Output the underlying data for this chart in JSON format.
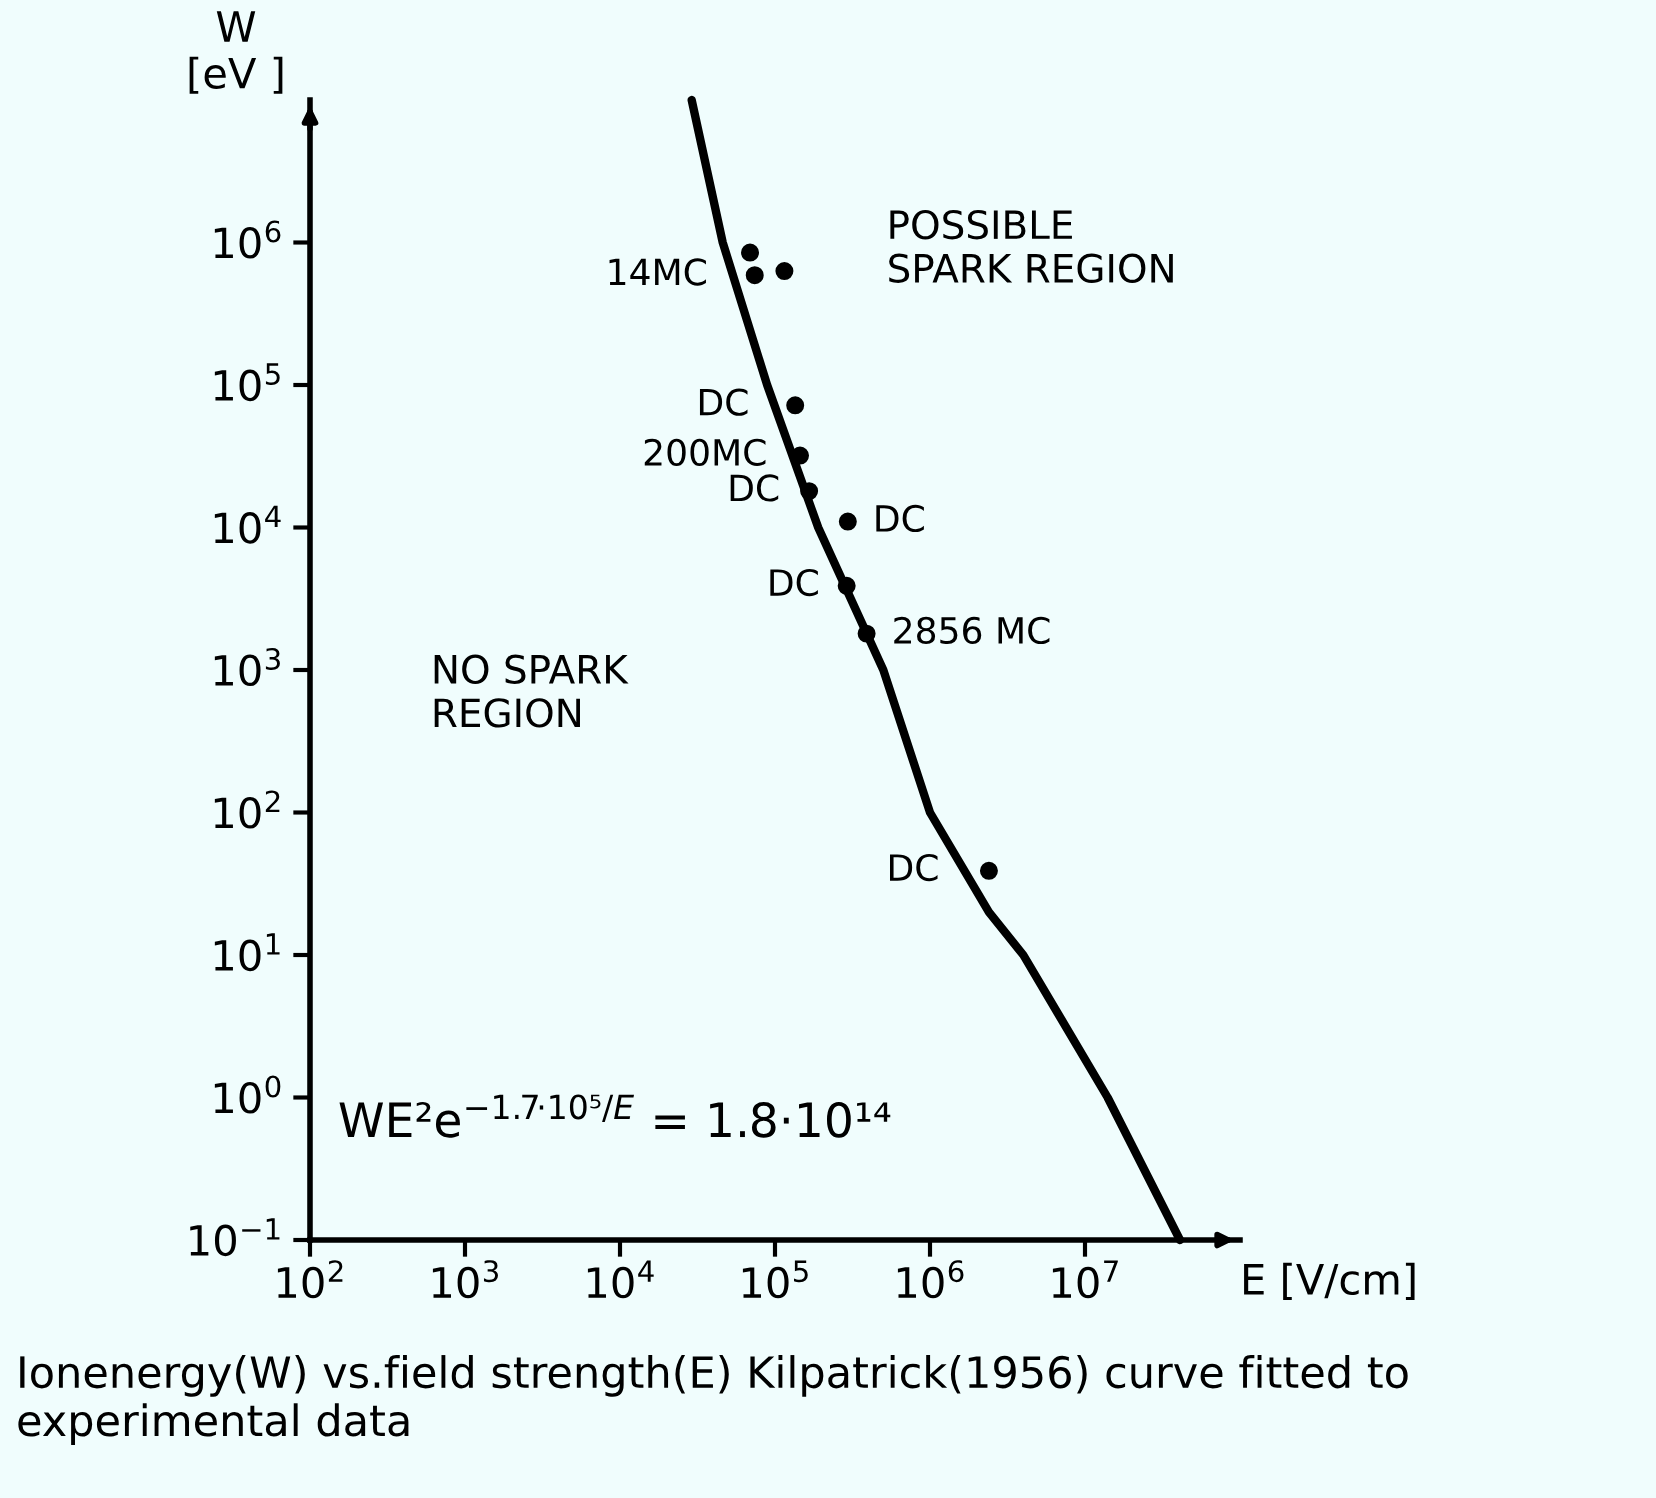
{
  "chart_data": {
    "type": "scatter",
    "log": "xy",
    "xlabel": "E [V/cm]",
    "ylabel": "W\n[eV ]",
    "xlim": [
      100,
      100000000
    ],
    "ylim": [
      0.1,
      10000000
    ],
    "xticks": [
      {
        "value": 100,
        "label": "10$^{2}$"
      },
      {
        "value": 1000,
        "label": "10$^{3}$"
      },
      {
        "value": 10000,
        "label": "10$^{4}$"
      },
      {
        "value": 100000,
        "label": "10$^{5}$"
      },
      {
        "value": 1000000,
        "label": "10$^{6}$"
      },
      {
        "value": 10000000,
        "label": "10$^{7}$"
      }
    ],
    "yticks": [
      {
        "value": 0.1,
        "label": "10$^{−1}$"
      },
      {
        "value": 1,
        "label": "10$^{0}$"
      },
      {
        "value": 10,
        "label": "10$^{1}$"
      },
      {
        "value": 100,
        "label": "10$^{2}$"
      },
      {
        "value": 1000,
        "label": "10$^{3}$"
      },
      {
        "value": 10000,
        "label": "10$^{4}$"
      },
      {
        "value": 100000,
        "label": "10$^{5}$"
      },
      {
        "value": 1000000,
        "label": "10$^{6}$"
      }
    ],
    "grid": false,
    "legend": false,
    "series": [
      {
        "type": "line",
        "color": "#000000",
        "line_style": "solid",
        "marker": "none",
        "x": [
          29000,
          46000,
          89000,
          190000,
          500000,
          1000000,
          2400000,
          4000000,
          14000000,
          41000000
        ],
        "values": [
          10000000,
          1000000,
          100000,
          10000,
          1000,
          100,
          20,
          10,
          1,
          0.1
        ]
      },
      {
        "color": "#000000",
        "marker": "circle",
        "x": [
          69000,
          74000,
          115000,
          135000,
          145000,
          166000,
          295000,
          290000,
          390000,
          2400000
        ],
        "values": [
          850000,
          590000,
          630000,
          72000,
          32000,
          18000,
          11000,
          3900,
          1800,
          39
        ]
      }
    ],
    "annotations": [
      {
        "text": "14MC",
        "x": 74000,
        "y": 590000
      },
      {
        "text": "DC",
        "x": 135000,
        "y": 72000
      },
      {
        "text": "200MC",
        "x": 145000,
        "y": 32000
      },
      {
        "text": "DC",
        "x": 166000,
        "y": 18000
      },
      {
        "text": "DC",
        "x": 295000,
        "y": 11000
      },
      {
        "text": "DC",
        "x": 290000,
        "y": 3900
      },
      {
        "text": "2856 MC",
        "x": 390000,
        "y": 1800
      },
      {
        "text": "DC",
        "x": 2400000,
        "y": 39
      },
      "POSSIBLE\nSPARK REGION",
      "NO SPARK\nREGION",
      "WE²e$^{−1.7·10⁵/E}$ = 1.8·10¹⁴",
      "Ionenergy(W) vs.field strength(E) Kilpatrick(1956) curve fitted to experimental data"
    ]
  }
}
